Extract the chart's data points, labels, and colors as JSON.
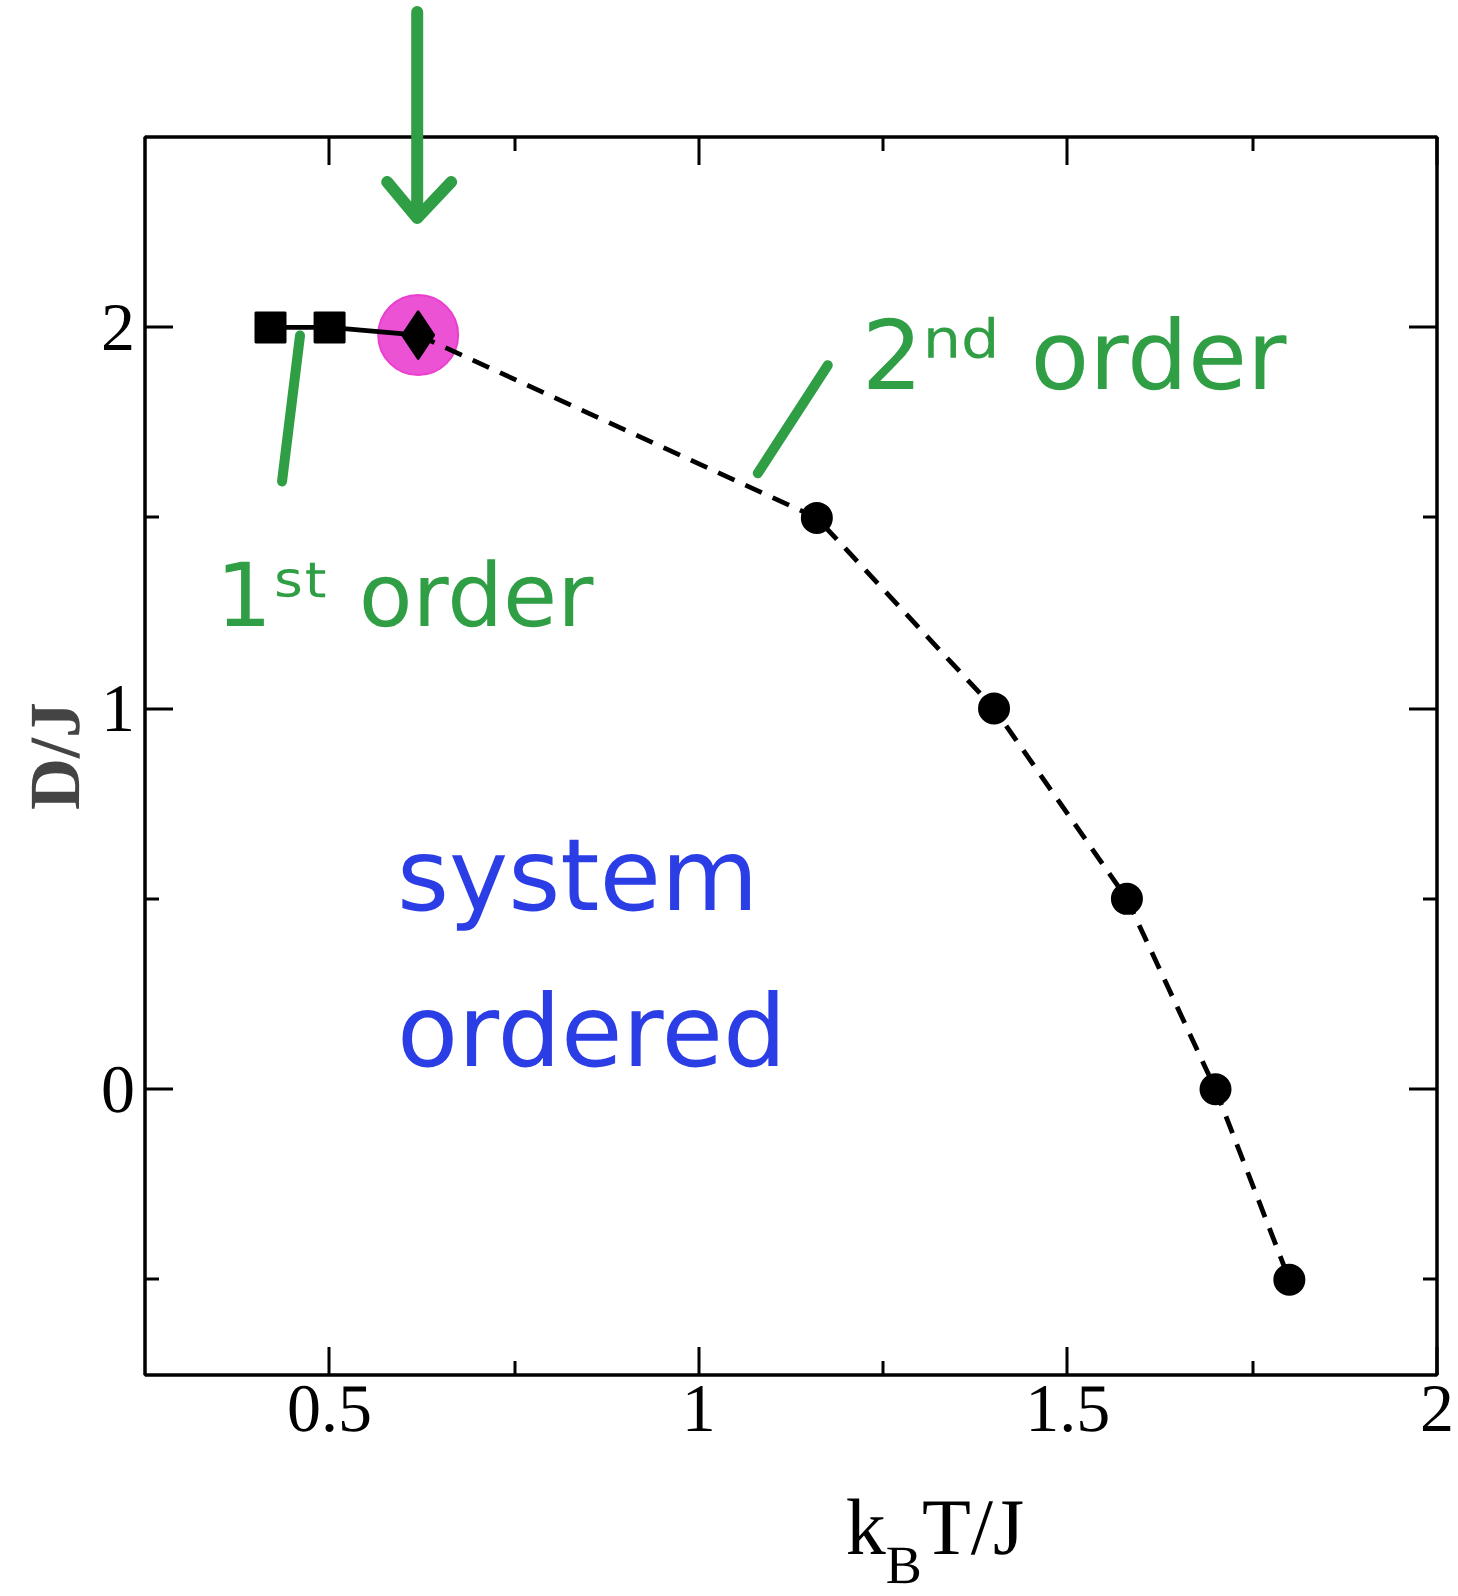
{
  "chart_data": {
    "type": "line",
    "xlabel": "k$_{B}$T/J",
    "ylabel": "D/J",
    "xlim": [
      0.25,
      2
    ],
    "ylim": [
      -0.75,
      2.5
    ],
    "xticks": [
      0.5,
      {
        "value": 0.75,
        "label": null
      },
      1,
      {
        "value": 1.25,
        "label": null
      },
      1.5,
      {
        "value": 1.75,
        "label": null
      },
      2
    ],
    "yticks": [
      {
        "value": -0.5,
        "label": null
      },
      0,
      {
        "value": 0.5,
        "label": null
      },
      1,
      {
        "value": 1.5,
        "label": null
      },
      2
    ],
    "series": [
      {
        "type": "bubble",
        "color": "#ea3fcf",
        "x": [
          0.62
        ],
        "values": [
          1.98
        ],
        "sizes": [
          1
        ]
      },
      {
        "line_style": "solid",
        "marker": "none",
        "color": "#000000",
        "x": [
          0.42,
          0.5,
          0.62
        ],
        "values": [
          2,
          2,
          1.98
        ]
      },
      {
        "line_style": "dashed",
        "marker": "none",
        "color": "#000000",
        "x": [
          0.62,
          1.16,
          1.4,
          1.58,
          1.7,
          1.8
        ],
        "values": [
          1.98,
          1.5,
          1,
          0.5,
          0,
          -0.5
        ]
      },
      {
        "type": "scatter",
        "marker": "square",
        "color": "#000000",
        "x": [
          0.42,
          0.5
        ],
        "values": [
          2,
          2
        ]
      },
      {
        "type": "scatter",
        "marker": "diamond",
        "color": "#000000",
        "x": [
          0.62
        ],
        "values": [
          1.98
        ]
      },
      {
        "type": "scatter",
        "marker": "circle",
        "color": "#000000",
        "x": [
          1.16,
          1.4,
          1.58,
          1.7,
          1.8
        ],
        "values": [
          1.5,
          1,
          0.5,
          0,
          -0.5
        ]
      }
    ],
    "annotations": [
      "system ordered",
      {
        "text": "1ˢᵗ order",
        "x": 0.46,
        "y": 2
      },
      {
        "text": "2ⁿᵈ order",
        "x": 1.08,
        "y": 1.57
      }
    ]
  }
}
